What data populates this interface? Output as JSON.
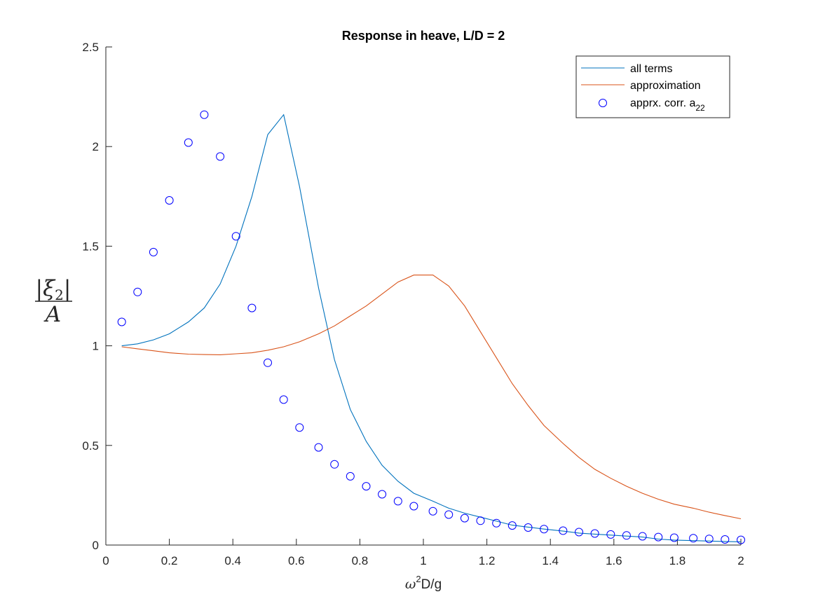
{
  "chart_data": {
    "type": "line",
    "title": "Response in heave, L/D = 2",
    "xlabel": {
      "base": "ω",
      "sup": "2",
      "rest": "D/g"
    },
    "ylabel": {
      "numerator_left": "|",
      "numerator_symbol": "ξ",
      "numerator_sub": "2",
      "numerator_right": "|",
      "denominator": "A"
    },
    "xlim": [
      0,
      2
    ],
    "ylim": [
      0,
      2.5
    ],
    "xticks": [
      "0",
      "0.2",
      "0.4",
      "0.6",
      "0.8",
      "1",
      "1.2",
      "1.4",
      "1.6",
      "1.8",
      "2"
    ],
    "yticks": [
      "0",
      "0.5",
      "1",
      "1.5",
      "2",
      "2.5"
    ],
    "legend": {
      "position": "top-right"
    },
    "colors": {
      "all_terms": "#0072BD",
      "approximation": "#D95319",
      "apprx_corr": "#0000FF"
    },
    "series": [
      {
        "name": "all terms",
        "style": "line",
        "color": "#0072BD",
        "x": [
          0.05,
          0.1,
          0.15,
          0.2,
          0.26,
          0.31,
          0.36,
          0.41,
          0.46,
          0.51,
          0.56,
          0.61,
          0.67,
          0.72,
          0.77,
          0.82,
          0.87,
          0.92,
          0.97,
          1.03,
          1.08,
          1.13,
          1.18,
          1.23,
          1.28,
          1.33,
          1.38,
          1.44,
          1.49,
          1.54,
          1.59,
          1.64,
          1.69,
          1.74,
          1.79,
          1.85,
          1.9,
          1.95,
          2.0
        ],
        "y": [
          1.0,
          1.01,
          1.03,
          1.06,
          1.12,
          1.19,
          1.31,
          1.5,
          1.75,
          2.06,
          2.16,
          1.8,
          1.29,
          0.93,
          0.68,
          0.52,
          0.4,
          0.32,
          0.26,
          0.22,
          0.185,
          0.16,
          0.14,
          0.12,
          0.1,
          0.09,
          0.08,
          0.07,
          0.06,
          0.055,
          0.05,
          0.045,
          0.04,
          0.03,
          0.025,
          0.022,
          0.02,
          0.018,
          0.016
        ]
      },
      {
        "name": "approximation",
        "style": "line",
        "color": "#D95319",
        "x": [
          0.05,
          0.1,
          0.15,
          0.2,
          0.26,
          0.31,
          0.36,
          0.41,
          0.46,
          0.51,
          0.56,
          0.61,
          0.67,
          0.72,
          0.77,
          0.82,
          0.87,
          0.92,
          0.97,
          1.03,
          1.08,
          1.13,
          1.18,
          1.23,
          1.28,
          1.33,
          1.38,
          1.44,
          1.49,
          1.54,
          1.59,
          1.64,
          1.69,
          1.74,
          1.79,
          1.85,
          1.9,
          1.95,
          2.0
        ],
        "y": [
          0.995,
          0.985,
          0.975,
          0.965,
          0.958,
          0.956,
          0.955,
          0.96,
          0.965,
          0.978,
          0.995,
          1.02,
          1.06,
          1.1,
          1.15,
          1.2,
          1.26,
          1.32,
          1.355,
          1.355,
          1.3,
          1.2,
          1.07,
          0.94,
          0.81,
          0.7,
          0.6,
          0.51,
          0.44,
          0.38,
          0.335,
          0.295,
          0.26,
          0.23,
          0.205,
          0.185,
          0.165,
          0.148,
          0.132
        ]
      },
      {
        "name": "apprx. corr. a",
        "name_sub": "22",
        "style": "markers",
        "color": "#0000FF",
        "x": [
          0.05,
          0.1,
          0.15,
          0.2,
          0.26,
          0.31,
          0.36,
          0.41,
          0.46,
          0.51,
          0.56,
          0.61,
          0.67,
          0.72,
          0.77,
          0.82,
          0.87,
          0.92,
          0.97,
          1.03,
          1.08,
          1.13,
          1.18,
          1.23,
          1.28,
          1.33,
          1.38,
          1.44,
          1.49,
          1.54,
          1.59,
          1.64,
          1.69,
          1.74,
          1.79,
          1.85,
          1.9,
          1.95,
          2.0
        ],
        "y": [
          1.12,
          1.27,
          1.47,
          1.73,
          2.02,
          2.16,
          1.95,
          1.55,
          1.19,
          0.915,
          0.73,
          0.59,
          0.49,
          0.405,
          0.345,
          0.295,
          0.255,
          0.22,
          0.195,
          0.17,
          0.153,
          0.135,
          0.122,
          0.11,
          0.098,
          0.088,
          0.08,
          0.072,
          0.065,
          0.058,
          0.053,
          0.048,
          0.044,
          0.04,
          0.037,
          0.034,
          0.031,
          0.028,
          0.026
        ]
      }
    ]
  }
}
